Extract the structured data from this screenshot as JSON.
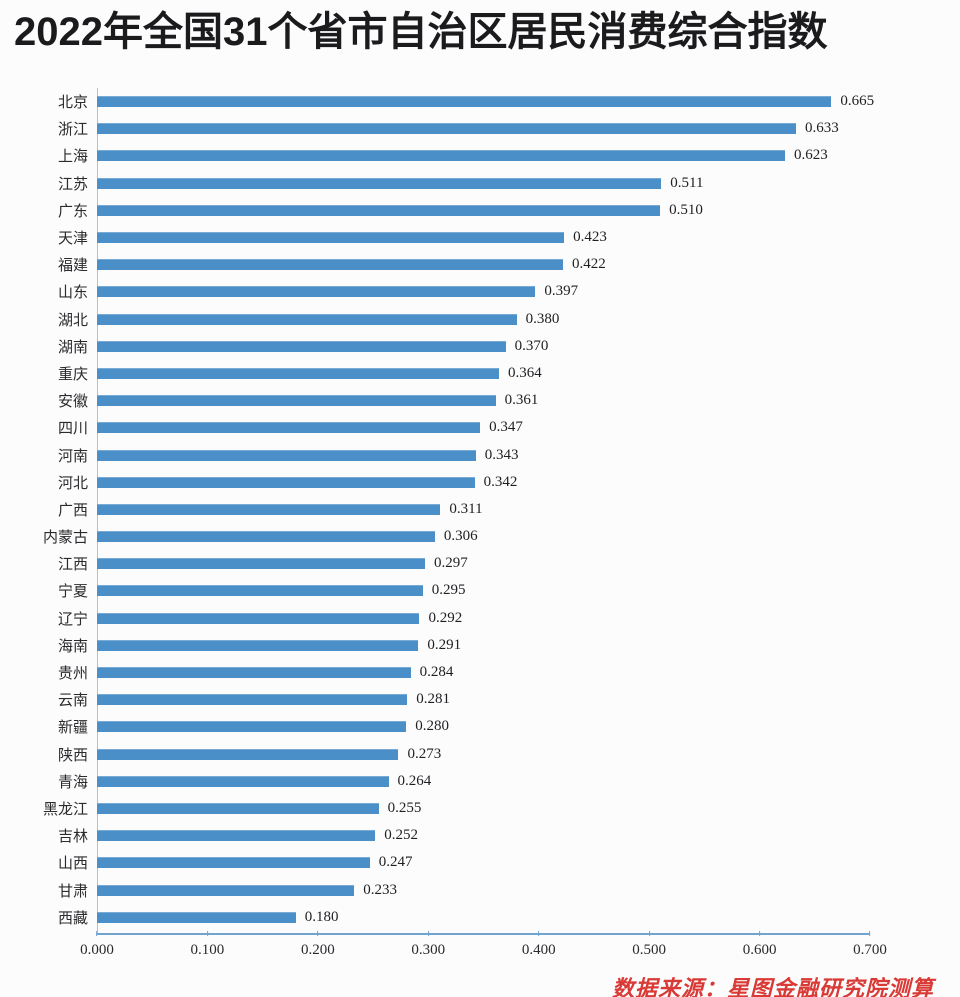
{
  "title": "2022年全国31个省市自治区居民消费综合指数",
  "source_note": "数据来源：星图金融研究院测算",
  "colors": {
    "bar": "#4a8fc7",
    "axis_line": "#70a3cd",
    "left_axis_line": "#a9c4da",
    "title_text": "#1b1b1d",
    "source_text": "#d93a36",
    "background": "#fcfcfd"
  },
  "chart_data": {
    "type": "bar",
    "orientation": "horizontal",
    "title": "2022年全国31个省市自治区居民消费综合指数",
    "categories": [
      "北京",
      "浙江",
      "上海",
      "江苏",
      "广东",
      "天津",
      "福建",
      "山东",
      "湖北",
      "湖南",
      "重庆",
      "安徽",
      "四川",
      "河南",
      "河北",
      "广西",
      "内蒙古",
      "江西",
      "宁夏",
      "辽宁",
      "海南",
      "贵州",
      "云南",
      "新疆",
      "陕西",
      "青海",
      "黑龙江",
      "吉林",
      "山西",
      "甘肃",
      "西藏"
    ],
    "values": [
      0.665,
      0.633,
      0.623,
      0.511,
      0.51,
      0.423,
      0.422,
      0.397,
      0.38,
      0.37,
      0.364,
      0.361,
      0.347,
      0.343,
      0.342,
      0.311,
      0.306,
      0.297,
      0.295,
      0.292,
      0.291,
      0.284,
      0.281,
      0.28,
      0.273,
      0.264,
      0.255,
      0.252,
      0.247,
      0.233,
      0.18
    ],
    "data_labels": true,
    "value_format": "0.000",
    "xlabel": "",
    "ylabel": "",
    "xlim": [
      0.0,
      0.7
    ],
    "x_ticks": [
      "0.000",
      "0.100",
      "0.200",
      "0.300",
      "0.400",
      "0.500",
      "0.600",
      "0.700"
    ],
    "grid": false,
    "legend": false,
    "annotation": "数据来源：星图金融研究院测算"
  }
}
